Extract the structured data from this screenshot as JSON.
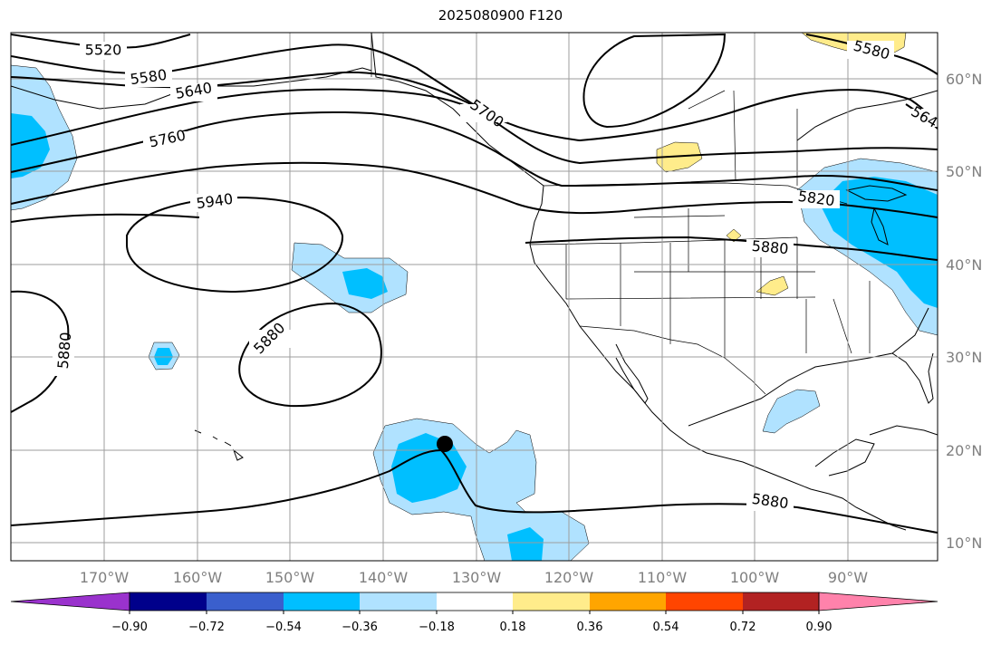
{
  "title": "2025080900 F120",
  "lat_labels": [
    "60°N",
    "50°N",
    "40°N",
    "30°N",
    "20°N",
    "10°N"
  ],
  "lon_labels": [
    "170°W",
    "160°W",
    "150°W",
    "140°W",
    "130°W",
    "120°W",
    "110°W",
    "100°W",
    "90°W"
  ],
  "contour_labels": [
    "5520",
    "5580",
    "5640",
    "5700",
    "5760",
    "5940",
    "5820",
    "5880",
    "5880",
    "5880",
    "5880",
    "5580",
    "564"
  ],
  "colorbar": {
    "ticks": [
      "−0.90",
      "−0.72",
      "−0.54",
      "−0.36",
      "−0.18",
      "0.18",
      "0.36",
      "0.54",
      "0.72",
      "0.90"
    ],
    "colors": [
      "#9a32cd",
      "#00008b",
      "#3a5fcd",
      "#00bfff",
      "#b0e2ff",
      "#ffffff",
      "#ffec8b",
      "#ffa500",
      "#ff4500",
      "#b22222",
      "#ff82ab"
    ]
  },
  "colors": {
    "shade_light_blue": "#b0e2ff",
    "shade_blue": "#00bfff",
    "shade_yellow": "#ffec8b",
    "grid": "#9e9e9e",
    "contour": "#000000"
  },
  "marker": "storm-center-dot"
}
